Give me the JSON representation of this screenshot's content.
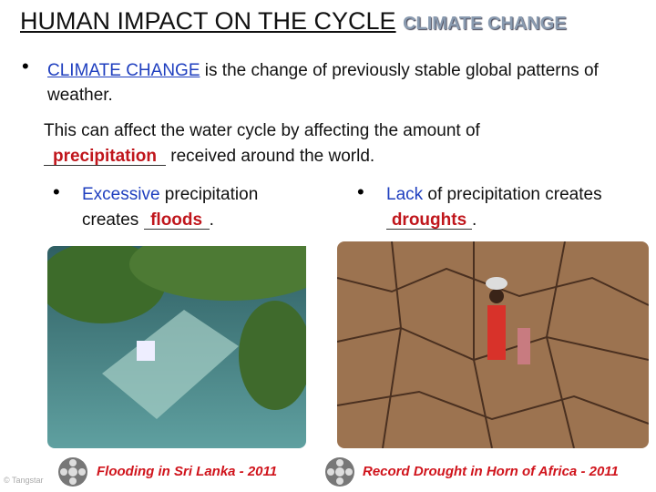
{
  "header": {
    "title": "HUMAN IMPACT ON THE CYCLE",
    "tag": "CLIMATE CHANGE"
  },
  "definition": {
    "term": "CLIMATE CHANGE",
    "text": " is the change of previously stable global patterns of weather."
  },
  "effect": {
    "text_before": "This can affect the water cycle by affecting the amount of",
    "answer": "precipitation",
    "text_after": " received around the world."
  },
  "left": {
    "keyword": "Excessive",
    "text": " precipitation creates ",
    "answer": "floods",
    "end": ".",
    "caption": "Flooding in Sri Lanka - 2011"
  },
  "right": {
    "keyword": "Lack",
    "text": " of precipitation creates ",
    "answer": "droughts",
    "end": ".",
    "caption": "Record Drought in Horn of Africa - 2011"
  },
  "watermark": "© Tangstar"
}
